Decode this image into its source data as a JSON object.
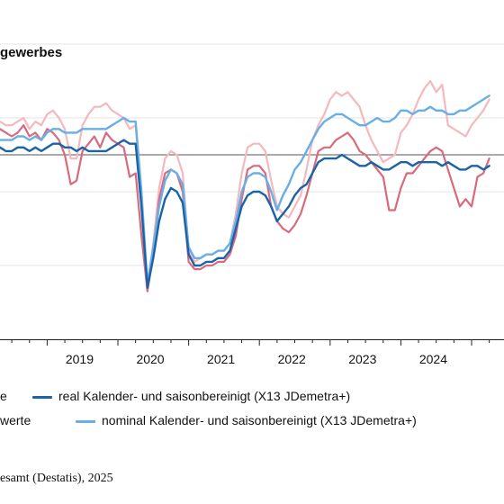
{
  "chart_data": {
    "type": "line",
    "title": "gewerbes",
    "xlabel": "",
    "ylabel": "",
    "x_start": "2018-05",
    "x_end": "2024-12",
    "x_tick_labels": [
      "2019",
      "2020",
      "2021",
      "2022",
      "2023",
      "2024"
    ],
    "ylim": [
      50,
      130
    ],
    "reference_value": 100,
    "grid": true,
    "legend_position": "bottom",
    "series": [
      {
        "name": "e",
        "color": "#d96a7d",
        "values": [
          107,
          106,
          105,
          106,
          108,
          105,
          106,
          104,
          107,
          106,
          104,
          100,
          92,
          93,
          101,
          103,
          105,
          102,
          106,
          104,
          103,
          102,
          94,
          95,
          78,
          63,
          73,
          88,
          95,
          96,
          95,
          90,
          71,
          69,
          69,
          70,
          70,
          71,
          71,
          73,
          78,
          88,
          96,
          97,
          97,
          95,
          86,
          82,
          80,
          79,
          81,
          84,
          89,
          95,
          101,
          102,
          102,
          104,
          105,
          106,
          104,
          101,
          100,
          98,
          96,
          94,
          85,
          85,
          91,
          95,
          95,
          97,
          99,
          101,
          102,
          101,
          96,
          91,
          86,
          88,
          86,
          94,
          95,
          99
        ]
      },
      {
        "name": "werte",
        "color": "#f4b8bd",
        "values": [
          109,
          108,
          108,
          109,
          110,
          107,
          109,
          108,
          111,
          112,
          110,
          107,
          99,
          99,
          108,
          111,
          113,
          113,
          114,
          112,
          111,
          110,
          107,
          108,
          88,
          64,
          76,
          91,
          99,
          101,
          100,
          95,
          74,
          71,
          72,
          73,
          73,
          74,
          74,
          76,
          84,
          95,
          102,
          103,
          103,
          101,
          93,
          86,
          84,
          83,
          86,
          89,
          96,
          104,
          108,
          111,
          115,
          117,
          116,
          117,
          115,
          113,
          108,
          104,
          101,
          98,
          99,
          100,
          106,
          108,
          111,
          115,
          118,
          120,
          117,
          119,
          108,
          107,
          106,
          105,
          108,
          110,
          112,
          115
        ]
      },
      {
        "name": "real Kalender- und saisonbereinigt (X13 JDemetra+)",
        "color": "#1b63a8",
        "values": [
          102,
          101,
          101,
          102,
          102,
          101,
          102,
          101,
          102,
          103,
          103,
          102,
          102,
          101,
          102,
          101,
          101,
          101,
          101,
          102,
          103,
          104,
          103,
          103,
          86,
          64,
          72,
          82,
          88,
          91,
          90,
          87,
          73,
          70,
          70,
          71,
          71,
          72,
          72,
          74,
          80,
          86,
          89,
          90,
          90,
          89,
          86,
          82,
          84,
          86,
          89,
          91,
          92,
          95,
          98,
          99,
          99,
          99,
          100,
          99,
          98,
          97,
          97,
          98,
          97,
          96,
          96,
          97,
          98,
          98,
          97,
          98,
          98,
          98,
          98,
          97,
          98,
          97,
          96,
          96,
          97,
          97,
          96,
          97
        ]
      },
      {
        "name": "nominal Kalender- und saisonbereinigt (X13 JDemetra+)",
        "color": "#6aaee6",
        "values": [
          104,
          104,
          104,
          105,
          105,
          104,
          105,
          104,
          106,
          107,
          107,
          106,
          106,
          106,
          107,
          107,
          107,
          107,
          107,
          108,
          109,
          110,
          109,
          109,
          90,
          65,
          75,
          86,
          93,
          96,
          95,
          92,
          75,
          72,
          72,
          73,
          73,
          74,
          74,
          76,
          82,
          90,
          94,
          95,
          95,
          94,
          90,
          85,
          89,
          92,
          96,
          98,
          101,
          104,
          107,
          109,
          110,
          111,
          111,
          110,
          109,
          108,
          108,
          109,
          110,
          109,
          109,
          110,
          112,
          112,
          111,
          112,
          112,
          113,
          112,
          112,
          111,
          111,
          112,
          112,
          113,
          114,
          115,
          116
        ]
      }
    ]
  },
  "source": "esamt (Destatis), 2025"
}
